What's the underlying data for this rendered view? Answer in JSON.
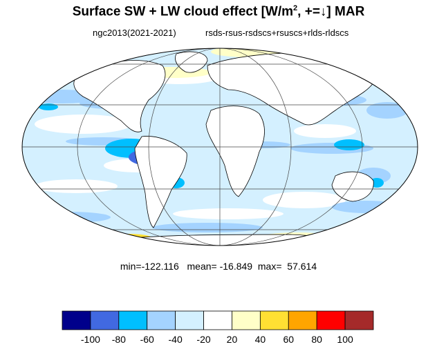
{
  "title": {
    "main": "Surface SW + LW cloud effect [W/m",
    "sup": "2",
    "rest": ", +=↓]  MAR"
  },
  "subtitle": {
    "left": "ngc2013(2021-2021)",
    "right": "rsds-rsus-rsdscs+rsuscs+rlds-rldscs"
  },
  "stats": {
    "min_label": "min=",
    "min": "-122.116",
    "mean_label": "mean=",
    "mean": "-16.849",
    "max_label": "max=",
    "max": "57.614"
  },
  "map": {
    "projection": "mollweide",
    "grid": true,
    "land_color": "#ffffff",
    "coastline_color": "#000000"
  },
  "colorbar": {
    "colors": [
      "#00008b",
      "#4169e1",
      "#00bfff",
      "#a4d3ff",
      "#d4f0ff",
      "#ffffff",
      "#ffffc8",
      "#ffe033",
      "#ffa500",
      "#ff0000",
      "#a52a2a"
    ],
    "labels": [
      "-100",
      "-80",
      "-60",
      "-40",
      "-20",
      "20",
      "40",
      "60",
      "80",
      "100"
    ]
  }
}
